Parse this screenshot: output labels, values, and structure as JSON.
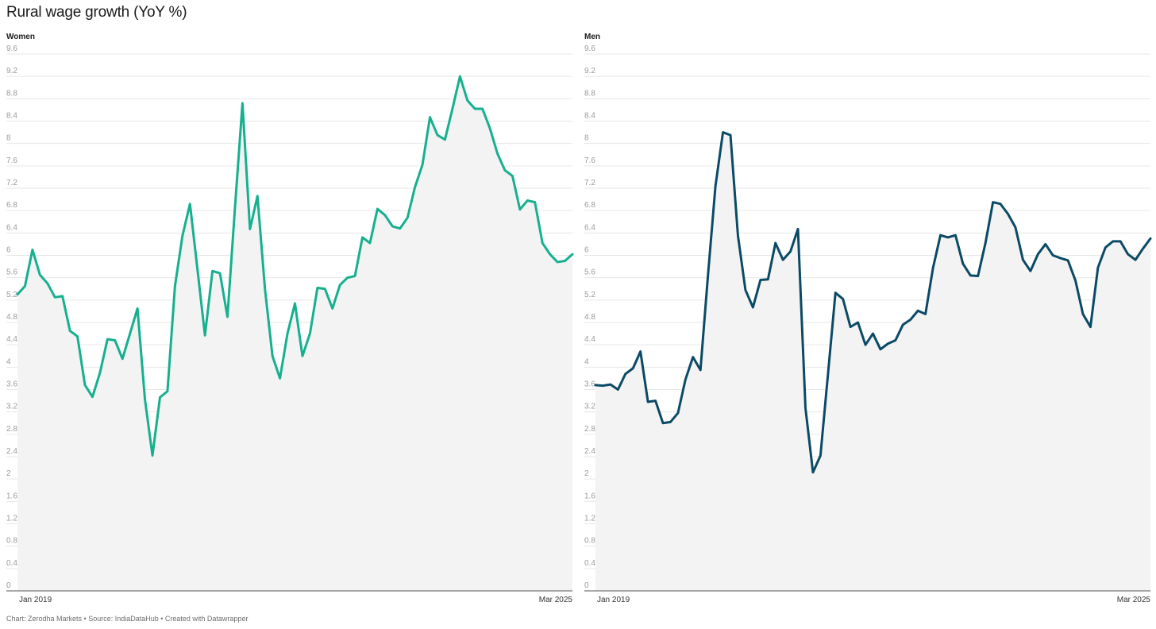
{
  "title": "Rural wage growth (YoY %)",
  "footer": "Chart: Zerodha Markets • Source: IndiaDataHub • Created with Datawrapper",
  "colors": {
    "women_line": "#16b08f",
    "men_line": "#0b4a66",
    "area_fill": "#f3f3f3",
    "grid": "#e6e6e6",
    "baseline": "#555555"
  },
  "chart_data": [
    {
      "type": "area",
      "title": "Women",
      "x_start_label": "Jan 2019",
      "x_end_label": "Mar 2025",
      "yticks": [
        "0",
        "0.4",
        "0.8",
        "1.2",
        "1.6",
        "2",
        "2.4",
        "2.8",
        "3.2",
        "3.6",
        "4",
        "4.4",
        "4.8",
        "5.2",
        "5.6",
        "6",
        "6.4",
        "6.8",
        "7.2",
        "7.6",
        "8",
        "8.4",
        "8.8",
        "9.2",
        "9.6"
      ],
      "ylim": [
        0,
        9.6
      ],
      "grid": true,
      "series": [
        {
          "values": [
            5.3,
            5.45,
            6.1,
            5.65,
            5.5,
            5.25,
            5.27,
            4.65,
            4.55,
            3.68,
            3.47,
            3.9,
            4.5,
            4.48,
            4.15,
            4.6,
            5.05,
            3.42,
            2.42,
            3.46,
            3.57,
            5.45,
            6.35,
            6.92,
            5.75,
            4.57,
            5.72,
            5.68,
            4.9,
            6.85,
            8.72,
            6.47,
            7.06,
            5.4,
            4.2,
            3.8,
            4.6,
            5.14,
            4.2,
            4.6,
            5.42,
            5.4,
            5.05,
            5.47,
            5.6,
            5.63,
            6.32,
            6.22,
            6.83,
            6.72,
            6.52,
            6.48,
            6.67,
            7.22,
            7.62,
            8.47,
            8.15,
            8.07,
            8.62,
            9.2,
            8.77,
            8.62,
            8.62,
            8.27,
            7.82,
            7.52,
            7.42,
            6.82,
            6.98,
            6.95,
            6.22,
            6.02,
            5.88,
            5.9,
            6.02
          ]
        }
      ]
    },
    {
      "type": "area",
      "title": "Men",
      "x_start_label": "Jan 2019",
      "x_end_label": "Mar 2025",
      "yticks": [
        "0",
        "0.4",
        "0.8",
        "1.2",
        "1.6",
        "2",
        "2.4",
        "2.8",
        "3.2",
        "3.6",
        "4",
        "4.4",
        "4.8",
        "5.2",
        "5.6",
        "6",
        "6.4",
        "6.8",
        "7.2",
        "7.6",
        "8",
        "8.4",
        "8.8",
        "9.2",
        "9.6"
      ],
      "ylim": [
        0,
        9.6
      ],
      "grid": true,
      "series": [
        {
          "values": [
            3.68,
            3.67,
            3.69,
            3.6,
            3.88,
            3.98,
            4.28,
            3.38,
            3.4,
            3.0,
            3.02,
            3.18,
            3.78,
            4.18,
            3.95,
            5.64,
            7.24,
            8.2,
            8.15,
            6.35,
            5.38,
            5.07,
            5.56,
            5.57,
            6.22,
            5.92,
            6.07,
            6.47,
            3.27,
            2.12,
            2.42,
            3.87,
            5.33,
            5.22,
            4.72,
            4.8,
            4.4,
            4.6,
            4.32,
            4.42,
            4.48,
            4.76,
            4.85,
            5.01,
            4.95,
            5.77,
            6.36,
            6.32,
            6.36,
            5.85,
            5.64,
            5.63,
            6.22,
            6.95,
            6.92,
            6.74,
            6.5,
            5.92,
            5.72,
            6.02,
            6.2,
            6.0,
            5.95,
            5.91,
            5.55,
            4.95,
            4.72,
            5.78,
            6.14,
            6.25,
            6.25,
            6.02,
            5.92,
            6.12,
            6.3
          ]
        }
      ]
    }
  ]
}
